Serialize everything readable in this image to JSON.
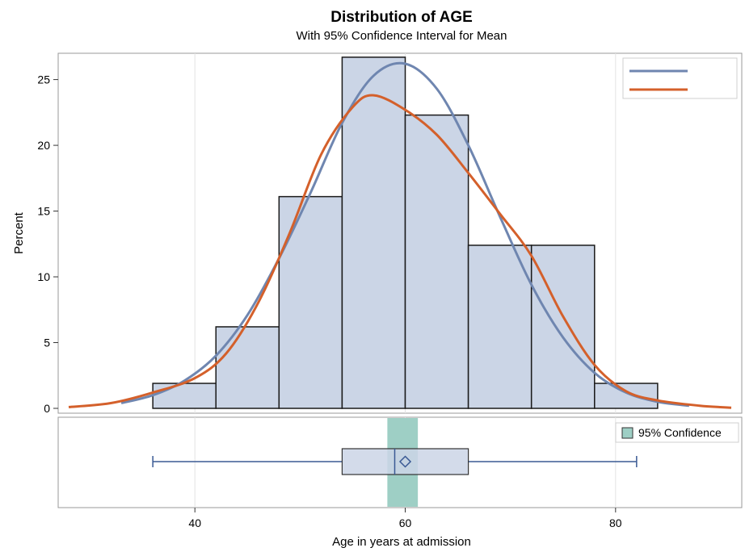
{
  "chart_data": {
    "type": "bar",
    "title": "Distribution of AGE",
    "subtitle": "With 95% Confidence Interval for Mean",
    "xlabel": "Age in years at admission",
    "ylabel": "Percent",
    "xlim": [
      27,
      92
    ],
    "ylim": [
      0,
      27
    ],
    "x_ticks": [
      40,
      60,
      80
    ],
    "y_ticks": [
      0,
      5,
      10,
      15,
      20,
      25
    ],
    "grid": "vertical",
    "histogram": {
      "bin_edges": [
        36,
        42,
        48,
        54,
        60,
        66,
        72,
        78,
        84
      ],
      "values": [
        1.9,
        6.2,
        16.1,
        26.7,
        22.3,
        12.4,
        12.4,
        1.9
      ],
      "fill": "#cbd5e6",
      "edge": "#1a1a1a"
    },
    "series": [
      {
        "kind": "normal-curve",
        "color": "#6f86b0",
        "x": [
          33,
          36,
          39,
          42,
          45,
          48,
          51,
          54,
          57,
          60,
          63,
          66,
          69,
          72,
          75,
          78,
          81,
          84,
          87
        ],
        "y": [
          0.4,
          1.0,
          2.1,
          4.0,
          7.1,
          11.4,
          16.4,
          21.7,
          25.3,
          26.2,
          24.3,
          20.0,
          14.6,
          9.4,
          5.4,
          2.7,
          1.2,
          0.5,
          0.2
        ]
      },
      {
        "kind": "kernel-density",
        "color": "#d4602b",
        "x": [
          28,
          32,
          36,
          40,
          43,
          46,
          49,
          52,
          55,
          57,
          60,
          63,
          66,
          69,
          72,
          75,
          78,
          81,
          84,
          88,
          91
        ],
        "y": [
          0.1,
          0.4,
          1.2,
          2.3,
          4.2,
          8.0,
          13.3,
          19.3,
          22.9,
          23.8,
          22.7,
          20.8,
          17.9,
          14.8,
          11.6,
          7.0,
          3.3,
          1.3,
          0.6,
          0.2,
          0.05
        ]
      }
    ],
    "legend": {
      "position": "top-right",
      "entries": [
        "",
        ""
      ]
    },
    "boxplot": {
      "min": 36,
      "q1": 54,
      "median": 59,
      "mean": 60,
      "q3": 66,
      "max": 82,
      "ci": [
        58.3,
        61.2
      ],
      "ci_color": "#9ecfc5",
      "box_fill": "#cbd5e6",
      "line_color": "#3a5a94",
      "legend_label": "95% Confidence"
    }
  }
}
